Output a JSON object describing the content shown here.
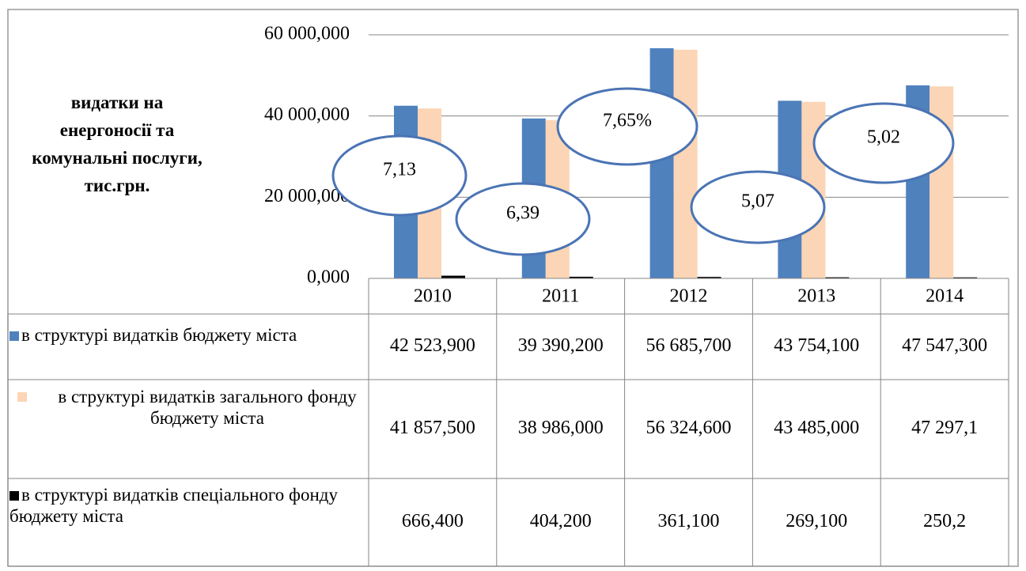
{
  "chart_data": {
    "type": "bar",
    "y_axis_label": "видатки на енергоносії та комунальні послуги, тис.грн.",
    "categories": [
      "2010",
      "2011",
      "2012",
      "2013",
      "2014"
    ],
    "series": [
      {
        "name": "в структурі видатків бюджету міста",
        "color": "#4f81bd",
        "values": [
          42523.9,
          39390.2,
          56685.7,
          43754.1,
          47547.3
        ],
        "value_labels": [
          "42 523,900",
          "39 390,200",
          "56 685,700",
          "43 754,100",
          "47 547,300"
        ]
      },
      {
        "name": "в структурі видатків загального фонду бюджету міста",
        "color": "#fbd5b5",
        "values": [
          41857.5,
          38986.0,
          56324.6,
          43485.0,
          47297.1
        ],
        "value_labels": [
          "41 857,500",
          "38 986,000",
          "56 324,600",
          "43 485,000",
          "47 297,1"
        ]
      },
      {
        "name": "в структурі видатків спеціального фонду бюджету міста",
        "color": "#000000",
        "values": [
          666.4,
          404.2,
          361.1,
          269.1,
          250.2
        ],
        "value_labels": [
          "666,400",
          "404,200",
          "361,100",
          "269,100",
          "250,2"
        ]
      }
    ],
    "annotations": [
      "7,13",
      "6,39",
      "7,65%",
      "5,07",
      "5,02"
    ],
    "ylim": [
      0,
      60000
    ],
    "yticks": [
      {
        "value": 0,
        "label": "0,000"
      },
      {
        "value": 20000,
        "label": "20 000,000"
      },
      {
        "value": 40000,
        "label": "40 000,000"
      },
      {
        "value": 60000,
        "label": "60 000,000"
      }
    ],
    "grid": true
  }
}
